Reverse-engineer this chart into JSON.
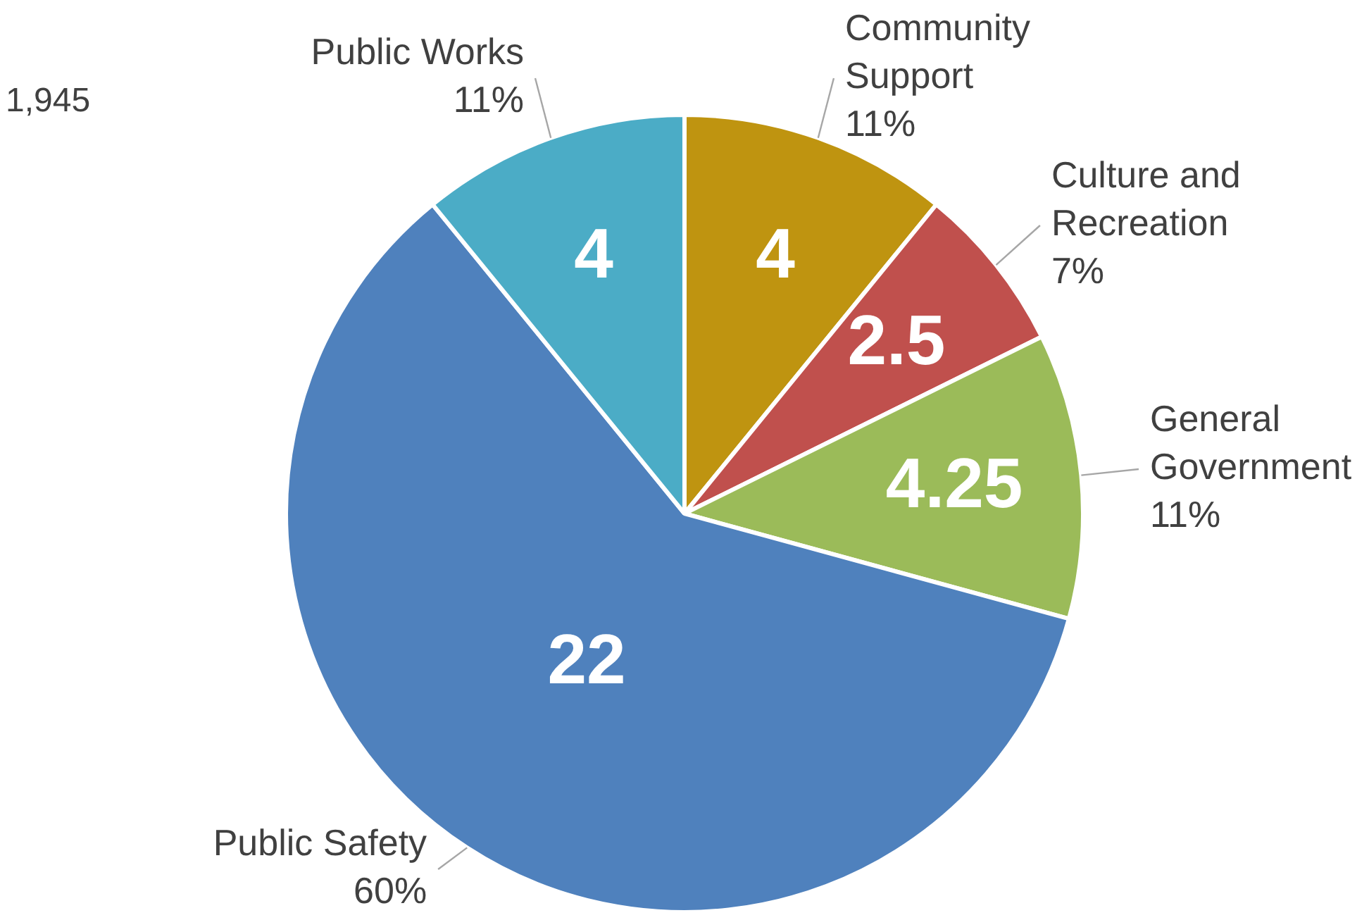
{
  "chart_data": {
    "type": "pie",
    "categories": [
      "Community Support",
      "Culture and Recreation",
      "General Government",
      "Public Safety",
      "Public Works"
    ],
    "values": [
      4,
      2.5,
      4.25,
      22,
      4
    ],
    "data_labels": true,
    "colors": [
      "#bf9410",
      "#c0504d",
      "#9bbb59",
      "#4f81bd",
      "#4bacc6"
    ],
    "legend": false,
    "annotations": [
      "1,945",
      {
        "text": "11%",
        "x": "Community Support"
      },
      {
        "text": "7%",
        "x": "Culture and Recreation"
      },
      {
        "text": "11%",
        "x": "General Government"
      },
      {
        "text": "60%",
        "x": "Public Safety"
      },
      {
        "text": "11%",
        "x": "Public Works"
      }
    ]
  }
}
